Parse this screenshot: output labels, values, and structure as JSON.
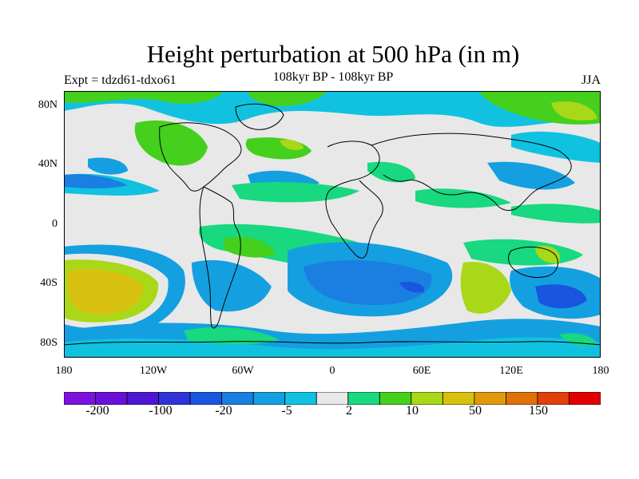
{
  "header": {
    "title": "Height perturbation at 500 hPa (in m)",
    "subtitle": "108kyr BP - 108kyr BP",
    "experiment": "Expt = tdzd61-tdxo61",
    "season": "JJA"
  },
  "axes": {
    "lat_labels": [
      "80N",
      "40N",
      "0",
      "40S",
      "80S"
    ],
    "lon_labels": [
      "180",
      "120W",
      "60W",
      "0",
      "60E",
      "120E",
      "180"
    ]
  },
  "colorbar": {
    "colors": [
      "#7e10e0",
      "#6a0fd6",
      "#4f16d2",
      "#2f33d8",
      "#1a55df",
      "#1a7fe0",
      "#14a0e0",
      "#10c2e0",
      "#e8e8e8",
      "#18d880",
      "#44d01c",
      "#a8d818",
      "#d8c010",
      "#e09a0c",
      "#e0700a",
      "#e0400a",
      "#e00000"
    ],
    "labels": [
      "-200",
      "-100",
      "-20",
      "-5",
      "2",
      "10",
      "50",
      "150"
    ]
  }
}
